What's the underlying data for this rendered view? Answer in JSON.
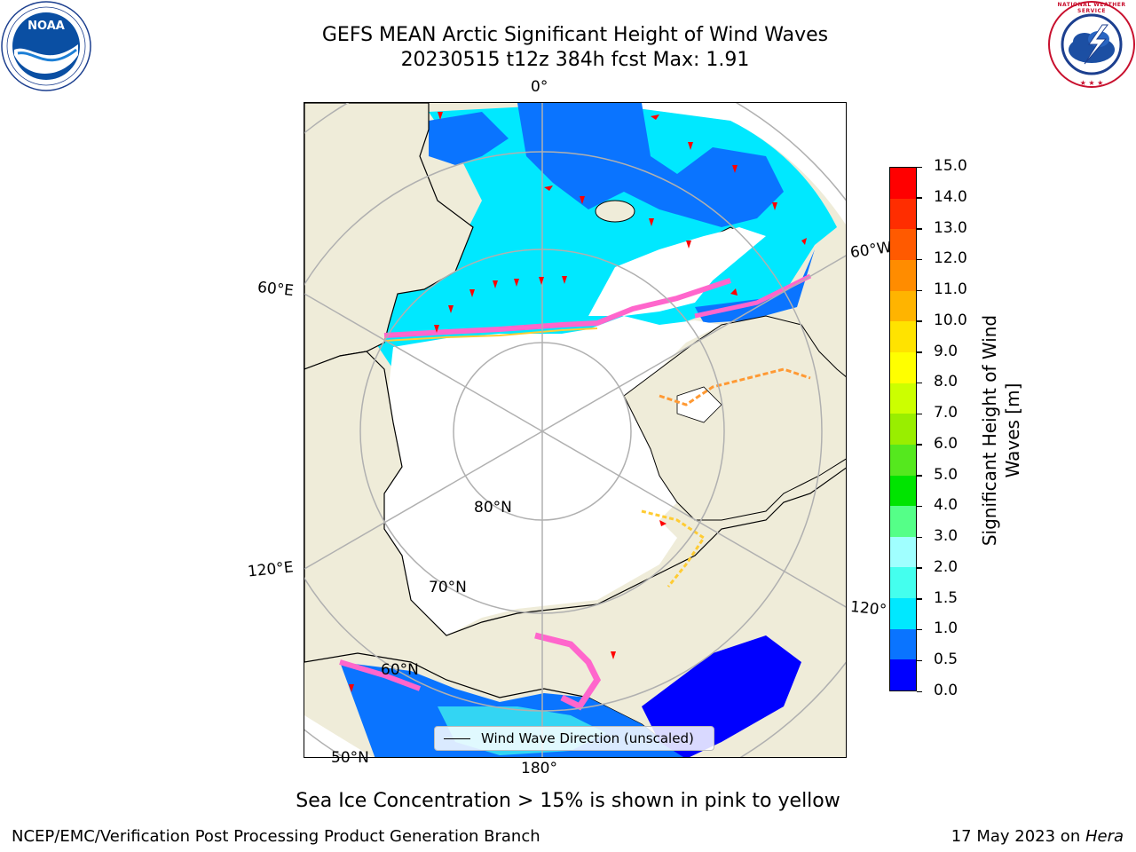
{
  "header": {
    "title_line1": "GEFS MEAN Arctic Significant Height of Wind Waves",
    "title_line2": "20230515 t12z 384h fcst   Max: 1.91"
  },
  "logos": {
    "left": {
      "text": "NOAA",
      "icon": "noaa-logo"
    },
    "right": {
      "text": "NATIONAL WEATHER SERVICE",
      "icon": "nws-logo"
    }
  },
  "map": {
    "projection": "north-polar-stereographic",
    "lon_labels": {
      "top": "0°",
      "left_upper": "60°E",
      "left_lower": "120°E",
      "bottom": "180°",
      "right_upper": "60°W",
      "right_lower": "120°"
    },
    "lat_labels": {
      "inner": "80°N",
      "middle": "70°N",
      "outer": "60°N",
      "edge": "50°N"
    },
    "colors": {
      "land": "#efecd9",
      "ice_free_ocean_outside": "#ffffff",
      "sea_ice_edge": [
        "#ff66cc",
        "#ff9933",
        "#ffcc33"
      ],
      "wave_arrow": "#ff0000",
      "grid": "#b0b0b0"
    }
  },
  "colorbar": {
    "label": "Significant Height of Wind Waves [m]",
    "label_line1": "Significant Height of Wind",
    "label_line2": "Waves [m]",
    "ticks": [
      "0.0",
      "0.5",
      "1.0",
      "1.5",
      "2.0",
      "3.0",
      "4.0",
      "5.0",
      "6.0",
      "7.0",
      "8.0",
      "9.0",
      "10.0",
      "11.0",
      "12.0",
      "13.0",
      "14.0",
      "15.0"
    ],
    "colors": [
      "#0000ff",
      "#0a74ff",
      "#00e8ff",
      "#44ffee",
      "#a0ffff",
      "#55ff88",
      "#00e400",
      "#55e81e",
      "#99ee00",
      "#ccff00",
      "#ffff00",
      "#ffe300",
      "#ffb400",
      "#ff8c00",
      "#ff5a00",
      "#ff2d00",
      "#ff0000"
    ]
  },
  "legend": {
    "label": "Wind Wave Direction (unscaled)"
  },
  "footer": {
    "subtitle": "Sea Ice Concentration > 15% is shown in pink to yellow",
    "left": "NCEP/EMC/Verification Post Processing Product Generation Branch",
    "right_prefix": "17 May 2023 on ",
    "right_machine": "Hera"
  }
}
